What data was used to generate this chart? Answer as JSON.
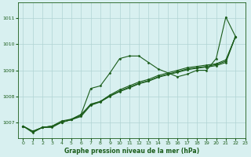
{
  "xlabel": "Graphe pression niveau de la mer (hPa)",
  "xlim": [
    -0.5,
    23
  ],
  "ylim": [
    1006.4,
    1011.6
  ],
  "yticks": [
    1007,
    1008,
    1009,
    1010,
    1011
  ],
  "xticks": [
    0,
    1,
    2,
    3,
    4,
    5,
    6,
    7,
    8,
    9,
    10,
    11,
    12,
    13,
    14,
    15,
    16,
    17,
    18,
    19,
    20,
    21,
    22,
    23
  ],
  "background_color": "#d8f0f0",
  "grid_color": "#b0d4d4",
  "line_color": "#1a5c1a",
  "series": [
    {
      "x": [
        0,
        1,
        2,
        3,
        4,
        5,
        6,
        7,
        8,
        9,
        10,
        11,
        12,
        13,
        14,
        15,
        16,
        17,
        18,
        19,
        20,
        21,
        22
      ],
      "y": [
        1006.85,
        1006.6,
        1006.8,
        1006.8,
        1007.0,
        1007.1,
        1007.3,
        1008.3,
        1008.4,
        1008.9,
        1009.45,
        1009.55,
        1009.55,
        1009.3,
        1009.05,
        1008.9,
        1008.75,
        1008.85,
        1009.0,
        1009.0,
        1009.45,
        1011.05,
        1010.3
      ]
    },
    {
      "x": [
        0,
        1,
        2,
        3,
        4,
        5,
        6,
        7,
        8,
        9,
        10,
        11,
        12,
        13,
        14,
        15,
        16,
        17,
        18,
        19,
        20,
        21,
        22
      ],
      "y": [
        1006.85,
        1006.65,
        1006.8,
        1006.85,
        1007.0,
        1007.1,
        1007.25,
        1007.7,
        1007.8,
        1008.05,
        1008.25,
        1008.4,
        1008.55,
        1008.65,
        1008.8,
        1008.9,
        1009.0,
        1009.1,
        1009.15,
        1009.2,
        1009.25,
        1009.4,
        1010.3
      ]
    },
    {
      "x": [
        0,
        1,
        2,
        3,
        4,
        5,
        6,
        7,
        8,
        9,
        10,
        11,
        12,
        13,
        14,
        15,
        16,
        17,
        18,
        19,
        20,
        21,
        22
      ],
      "y": [
        1006.85,
        1006.65,
        1006.8,
        1006.85,
        1007.0,
        1007.1,
        1007.22,
        1007.65,
        1007.78,
        1008.0,
        1008.18,
        1008.32,
        1008.48,
        1008.58,
        1008.73,
        1008.83,
        1008.92,
        1009.02,
        1009.08,
        1009.12,
        1009.18,
        1009.3,
        1010.3
      ]
    },
    {
      "x": [
        0,
        1,
        2,
        3,
        4,
        5,
        6,
        7,
        8,
        9,
        10,
        11,
        12,
        13,
        14,
        15,
        16,
        17,
        18,
        19,
        20,
        21,
        22
      ],
      "y": [
        1006.85,
        1006.65,
        1006.8,
        1006.85,
        1007.05,
        1007.12,
        1007.3,
        1007.68,
        1007.8,
        1008.02,
        1008.2,
        1008.35,
        1008.5,
        1008.6,
        1008.75,
        1008.85,
        1008.95,
        1009.05,
        1009.1,
        1009.15,
        1009.22,
        1009.35,
        1010.3
      ]
    }
  ],
  "marker_style": "D",
  "marker_size": 1.5,
  "linewidth": 0.8,
  "tick_fontsize": 4.5,
  "xlabel_fontsize": 5.5
}
